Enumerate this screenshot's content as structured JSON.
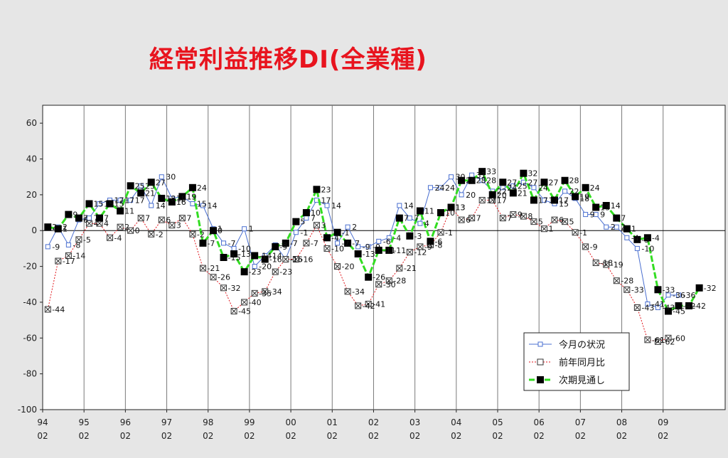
{
  "title": "経常利益推移DI(全業種)",
  "chart_data": {
    "type": "line",
    "title": "経常利益推移DI(全業種)",
    "ylim": [
      -100,
      70
    ],
    "yticks": [
      60,
      40,
      20,
      0,
      -20,
      -40,
      -60,
      -80,
      -100
    ],
    "x_count": 66,
    "xticks": [
      {
        "i": 0,
        "year": "94",
        "month": "02"
      },
      {
        "i": 4,
        "year": "95",
        "month": "02"
      },
      {
        "i": 8,
        "year": "96",
        "month": "02"
      },
      {
        "i": 12,
        "year": "97",
        "month": "02"
      },
      {
        "i": 16,
        "year": "98",
        "month": "02"
      },
      {
        "i": 20,
        "year": "99",
        "month": "02"
      },
      {
        "i": 24,
        "year": "00",
        "month": "02"
      },
      {
        "i": 28,
        "year": "01",
        "month": "02"
      },
      {
        "i": 32,
        "year": "02",
        "month": "02"
      },
      {
        "i": 36,
        "year": "03",
        "month": "02"
      },
      {
        "i": 40,
        "year": "04",
        "month": "02"
      },
      {
        "i": 44,
        "year": "05",
        "month": "02"
      },
      {
        "i": 48,
        "year": "06",
        "month": "02"
      },
      {
        "i": 52,
        "year": "07",
        "month": "02"
      },
      {
        "i": 56,
        "year": "08",
        "month": "02"
      },
      {
        "i": 60,
        "year": "09",
        "month": "02"
      }
    ],
    "series": [
      {
        "name": "今月の状況",
        "color": "#4a6fd0",
        "values": [
          -9,
          2,
          -8,
          6,
          7,
          15,
          17,
          17,
          17,
          25,
          14,
          30,
          18,
          19,
          15,
          14,
          1,
          -7,
          -10,
          1,
          -20,
          -14,
          -8,
          -16,
          -1,
          7,
          17,
          14,
          -7,
          2,
          -9,
          -9,
          -6,
          -4,
          14,
          7,
          4,
          24,
          24,
          30,
          20,
          31,
          28,
          22,
          24,
          25,
          27,
          24,
          17,
          15,
          22,
          18,
          9,
          9,
          2,
          2,
          -4,
          -10,
          -41,
          -43,
          -36,
          -36
        ]
      },
      {
        "name": "前年同月比",
        "color": "#e0151b",
        "values": [
          -44,
          -17,
          -14,
          -5,
          4,
          4,
          -4,
          2,
          0,
          7,
          -2,
          6,
          3,
          7,
          -2,
          -21,
          -26,
          -32,
          -45,
          -40,
          -35,
          -34,
          -23,
          -16,
          -16,
          -7,
          3,
          -10,
          -20,
          -34,
          -42,
          -41,
          -30,
          -28,
          -21,
          -12,
          -9,
          -8,
          -1,
          13,
          6,
          7,
          17,
          17,
          7,
          9,
          8,
          5,
          1,
          6,
          5,
          -1,
          -9,
          -18,
          -19,
          -28,
          -33,
          -43,
          -61,
          -62,
          -60
        ]
      },
      {
        "name": "次期見通し",
        "color": "#33dd22",
        "values": [
          2,
          1,
          9,
          7,
          15,
          7,
          15,
          11,
          25,
          21,
          27,
          18,
          16,
          19,
          24,
          -7,
          0,
          -15,
          -13,
          -23,
          -14,
          -16,
          -9,
          -7,
          5,
          10,
          23,
          -4,
          -1,
          -7,
          -13,
          -26,
          -11,
          -11,
          7,
          -3,
          11,
          -6,
          10,
          13,
          28,
          28,
          33,
          20,
          27,
          21,
          32,
          17,
          27,
          17,
          28,
          19,
          24,
          13,
          14,
          7,
          1,
          -5,
          -4,
          -33,
          -45,
          -42,
          -42,
          -32
        ]
      }
    ],
    "labels": {
      "now": [
        "-9",
        "2",
        "-8",
        "6",
        "7",
        "15",
        "17",
        "17",
        "17",
        "25",
        "14",
        "30",
        "18",
        "19",
        "15",
        "14",
        "1",
        "-7",
        "-10",
        "1",
        "-20",
        "-14",
        "-8",
        "-16",
        "-1",
        "7",
        "17",
        "14",
        "-7",
        "2",
        "-9",
        "-9",
        "-6",
        "-4",
        "14",
        "7",
        "4",
        "24",
        "24",
        "30",
        "20",
        "31",
        "28",
        "22",
        "24",
        "25",
        "27",
        "24",
        "17",
        "15",
        "22",
        "18",
        "9",
        "9",
        "2",
        "2",
        "-4",
        "-10",
        "-41",
        "-43",
        "-36",
        "-36"
      ],
      "yoy": [
        "-44",
        "-17",
        "-14",
        "-5",
        "4",
        "4",
        "-4",
        "2",
        "0",
        "7",
        "-2",
        "6",
        "3",
        "7",
        "-2",
        "-21",
        "-26",
        "-32",
        "-45",
        "-40",
        "-35",
        "-34",
        "-23",
        "-16",
        "-16",
        "-7",
        "3",
        "-10",
        "-20",
        "-34",
        "-42",
        "-41",
        "-30",
        "-28",
        "-21",
        "-12",
        "-9",
        "-8",
        "-1",
        "13",
        "6",
        "7",
        "17",
        "17",
        "7",
        "9",
        "8",
        "5",
        "1",
        "6",
        "5",
        "-1",
        "-9",
        "-18",
        "-19",
        "-28",
        "-33",
        "-43",
        "-61",
        "-62",
        "-60"
      ],
      "next": [
        "2",
        "1",
        "9",
        "7",
        "15",
        "7",
        "15",
        "11",
        "25",
        "21",
        "27",
        "18",
        "16",
        "19",
        "24",
        "-7",
        "0",
        "-15",
        "-13",
        "-23",
        "-14",
        "-16",
        "-9",
        "-7",
        "5",
        "10",
        "23",
        "-4",
        "-1",
        "-7",
        "-13",
        "-26",
        "-11",
        "-11",
        "7",
        "-3",
        "11",
        "-6",
        "10",
        "13",
        "28",
        "28",
        "33",
        "20",
        "27",
        "21",
        "32",
        "17",
        "27",
        "17",
        "28",
        "19",
        "24",
        "13",
        "14",
        "7",
        "1",
        "-5",
        "-4",
        "-33",
        "-45",
        "-42",
        "-42",
        "-32"
      ]
    },
    "legend": {
      "position": "bottom-right",
      "entries": [
        "今月の状況",
        "前年同月比",
        "次期見通し"
      ]
    },
    "grid": "vertical-at-year"
  }
}
